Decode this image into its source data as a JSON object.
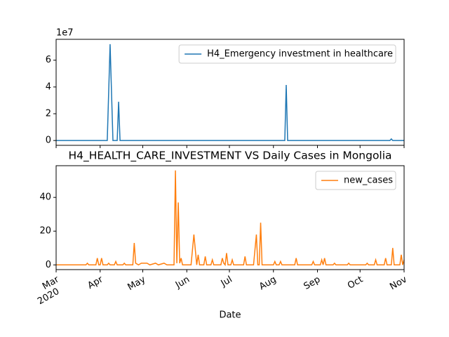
{
  "chart_data": [
    {
      "type": "line",
      "y_offset_label": "1e7",
      "series": [
        {
          "name": "H4_Emergency investment in healthcare",
          "color": "#1f77b4",
          "x": [
            0,
            36,
            38,
            40,
            43,
            44,
            45,
            161,
            162,
            163,
            235,
            236,
            237,
            245
          ],
          "values": [
            0,
            0,
            72000000,
            0,
            0,
            29000000,
            0,
            0,
            41500000,
            0,
            0,
            1200000,
            0,
            0
          ]
        }
      ],
      "xlim": [
        0,
        245
      ],
      "ylim": [
        -3600000,
        75600000
      ],
      "yticks": [
        0,
        {
          "value": 20000000,
          "label": "2"
        },
        {
          "value": 40000000,
          "label": "4"
        },
        {
          "value": 60000000,
          "label": "6"
        }
      ],
      "legend": "upper right"
    },
    {
      "type": "line",
      "title": "H4_HEALTH_CARE_INVESTMENT VS Daily Cases in Mongolia",
      "xlabel": "Date",
      "x_year_label": "2020",
      "series": [
        {
          "name": "new_cases",
          "color": "#ff7f0e",
          "x": [
            0,
            21,
            22,
            23,
            28,
            29,
            30,
            31,
            32,
            33,
            36,
            37,
            38,
            41,
            42,
            43,
            47,
            48,
            49,
            54,
            55,
            56,
            58,
            60,
            62,
            64,
            66,
            70,
            72,
            76,
            78,
            80,
            83,
            84,
            85,
            86,
            87,
            88,
            89,
            95,
            97,
            99,
            100,
            101,
            104,
            105,
            106,
            109,
            110,
            111,
            116,
            117,
            118,
            119,
            120,
            121,
            123,
            124,
            125,
            132,
            133,
            134,
            139,
            141,
            142,
            143,
            144,
            145,
            153,
            154,
            155,
            157,
            158,
            159,
            168,
            169,
            170,
            180,
            181,
            182,
            186,
            187,
            188,
            189,
            190,
            195,
            196,
            197,
            205,
            206,
            207,
            218,
            219,
            220,
            224,
            225,
            226,
            231,
            232,
            233,
            236,
            237,
            238,
            242,
            243,
            244,
            245
          ],
          "values": [
            0,
            0,
            1,
            0,
            0,
            4,
            0,
            0,
            4,
            0,
            0,
            1,
            0,
            0,
            2,
            0,
            0,
            1,
            0,
            0,
            13,
            1,
            0,
            1,
            1,
            1,
            0,
            1,
            0,
            1,
            0,
            0,
            0,
            56,
            1,
            37,
            1,
            4,
            0,
            0,
            18,
            0,
            6,
            0,
            0,
            5,
            0,
            0,
            3,
            0,
            0,
            4,
            1,
            0,
            7,
            0,
            0,
            3,
            0,
            0,
            5,
            0,
            0,
            18,
            0,
            0,
            25,
            0,
            0,
            2,
            0,
            0,
            2,
            0,
            0,
            4,
            0,
            0,
            2,
            0,
            0,
            3,
            0,
            4,
            0,
            0,
            1,
            0,
            0,
            1,
            0,
            0,
            1,
            0,
            0,
            3,
            0,
            0,
            4,
            0,
            0,
            10,
            0,
            0,
            6,
            0,
            3
          ]
        }
      ],
      "xlim": [
        0,
        245
      ],
      "xticks": [
        {
          "value": 0,
          "label": "Mar"
        },
        {
          "value": 31,
          "label": "Apr"
        },
        {
          "value": 61,
          "label": "May"
        },
        {
          "value": 92,
          "label": "Jun"
        },
        {
          "value": 122,
          "label": "Jul"
        },
        {
          "value": 153,
          "label": "Aug"
        },
        {
          "value": 184,
          "label": "Sep"
        },
        {
          "value": 214,
          "label": "Oct"
        },
        {
          "value": 245,
          "label": "Nov"
        }
      ],
      "ylim": [
        -2.8,
        58.8
      ],
      "yticks": [
        0,
        20,
        40
      ],
      "legend": "upper right"
    }
  ]
}
